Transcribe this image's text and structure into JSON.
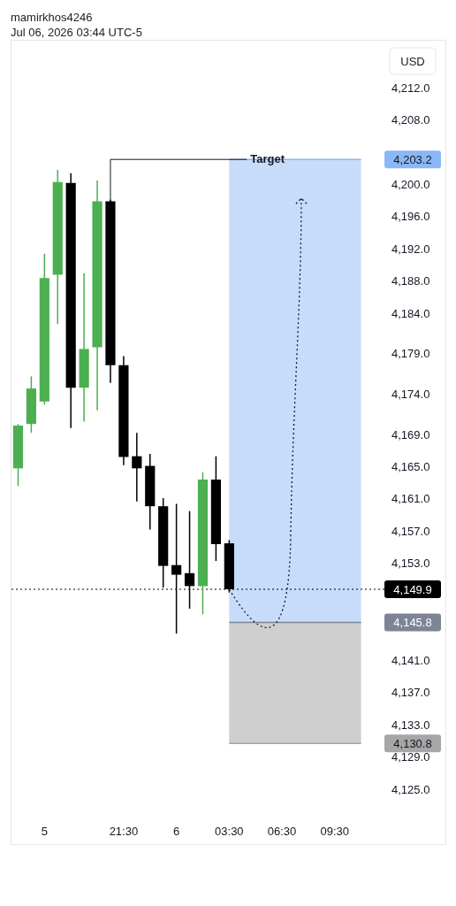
{
  "chart_data": {
    "type": "candlestick",
    "title": "mamirkhos4246",
    "subtitle": "Jul 06, 2026 03:44 UTC-5",
    "ylabel": "USD",
    "categories": [
      null,
      null,
      "5",
      null,
      null,
      null,
      null,
      null,
      "21:30",
      null,
      null,
      null,
      "6",
      null,
      null,
      null,
      "03:30",
      null,
      null,
      null,
      "06:30",
      null,
      null,
      null,
      "09:30",
      null,
      null,
      null
    ],
    "ohlc": [
      [
        4164.9,
        4170.4,
        4162.7,
        4170.2
      ],
      [
        4170.4,
        4176.3,
        4169.3,
        4174.8
      ],
      [
        4173.2,
        4191.5,
        4172.8,
        4188.5
      ],
      [
        4188.9,
        4201.9,
        4182.8,
        4200.4
      ],
      [
        4200.3,
        4201.5,
        4169.9,
        4174.9
      ],
      [
        4174.9,
        4189.1,
        4170.7,
        4179.7
      ],
      [
        4179.9,
        4200.6,
        4172.1,
        4198.0
      ],
      [
        4198.0,
        4198.2,
        4175.5,
        4177.7
      ],
      [
        4177.7,
        4178.8,
        4165.3,
        4166.3
      ],
      [
        4166.4,
        4169.3,
        4160.8,
        4164.9
      ],
      [
        4165.2,
        4166.7,
        4157.3,
        4160.2
      ],
      [
        4160.2,
        4161.2,
        4150.1,
        4152.8
      ],
      [
        4152.9,
        4160.5,
        4144.4,
        4151.7
      ],
      [
        4151.9,
        4159.6,
        4147.5,
        4150.3
      ],
      [
        4150.3,
        4164.4,
        4146.8,
        4163.5
      ],
      [
        4163.5,
        4166.4,
        4153.4,
        4155.5
      ],
      [
        4155.6,
        4156.0,
        4149.5,
        4149.9
      ],
      null,
      null,
      null,
      null,
      null,
      null,
      null,
      null,
      null,
      null,
      null
    ],
    "colors": [
      "#4caf50",
      "#4caf50",
      "#4caf50",
      "#4caf50",
      "#000000",
      "#4caf50",
      "#4caf50",
      "#000000",
      "#000000",
      "#000000",
      "#000000",
      "#000000",
      "#000000",
      "#000000",
      "#4caf50",
      "#000000",
      "#000000",
      null,
      null,
      null,
      null,
      null,
      null,
      null,
      null,
      null,
      null,
      null
    ],
    "ylim": [
      4125,
      4212
    ],
    "yticks": [
      {
        "value": 4125,
        "label": "4,125.0"
      },
      {
        "value": 4129,
        "label": "4,129.0"
      },
      {
        "value": 4133,
        "label": "4,133.0"
      },
      {
        "value": 4137,
        "label": "4,137.0"
      },
      {
        "value": 4141,
        "label": "4,141.0"
      },
      {
        "value": 4153,
        "label": "4,153.0"
      },
      {
        "value": 4157,
        "label": "4,157.0"
      },
      {
        "value": 4161,
        "label": "4,161.0"
      },
      {
        "value": 4165,
        "label": "4,165.0"
      },
      {
        "value": 4169,
        "label": "4,169.0"
      },
      {
        "value": 4174,
        "label": "4,174.0"
      },
      {
        "value": 4179,
        "label": "4,179.0"
      },
      {
        "value": 4184,
        "label": "4,184.0"
      },
      {
        "value": 4188,
        "label": "4,188.0"
      },
      {
        "value": 4192,
        "label": "4,192.0"
      },
      {
        "value": 4196,
        "label": "4,196.0"
      },
      {
        "value": 4200,
        "label": "4,200.0"
      },
      {
        "value": 4208,
        "label": "4,208.0"
      },
      {
        "value": 4212,
        "label": "4,212.0"
      }
    ],
    "bands": [
      {
        "axis": "y",
        "from": 4145.8,
        "to": 4203.2,
        "color": "#c6dcfa",
        "label": "Target"
      },
      {
        "axis": "y",
        "from": 4130.8,
        "to": 4145.8,
        "color": "#cfcfcf"
      }
    ],
    "ref_lines": [
      {
        "axis": "y",
        "value": 4149.9,
        "label": "4,149.9",
        "color": "#000000",
        "line_style": "dotted"
      },
      {
        "axis": "y",
        "value": 4203.2,
        "label": "4,203.2",
        "color": "#8ab8f5",
        "line_style": "solid"
      },
      {
        "axis": "y",
        "value": 4145.8,
        "label": "4,145.8",
        "color": "#7d8595",
        "line_style": "solid"
      },
      {
        "axis": "y",
        "value": 4130.8,
        "label": "4,130.8",
        "color": "#a6a6a6",
        "line_style": "solid"
      }
    ],
    "grid": false,
    "legend": false
  }
}
